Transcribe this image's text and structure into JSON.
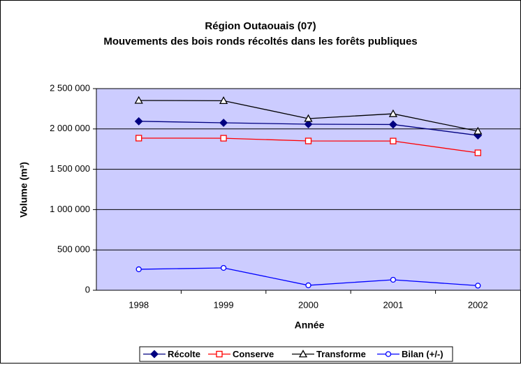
{
  "chart_data": {
    "type": "line",
    "title": "Région Outaouais (07)",
    "subtitle": "Mouvements des bois ronds récoltés dans les forêts publiques",
    "x_label": "Année",
    "y_label": "Volume (m³)",
    "categories": [
      "1998",
      "1999",
      "2000",
      "2001",
      "2002"
    ],
    "series": [
      {
        "name": "Récolte",
        "color": "#000080",
        "marker": "diamond",
        "values": [
          2095000,
          2076000,
          2059000,
          2055000,
          1920000
        ]
      },
      {
        "name": "Conserve",
        "color": "#ff0000",
        "marker": "square",
        "values": [
          1886000,
          1885000,
          1851000,
          1850000,
          1704000
        ]
      },
      {
        "name": "Transforme",
        "color": "#000000",
        "marker": "triangle",
        "values": [
          2353000,
          2350000,
          2128000,
          2188000,
          1972000
        ]
      },
      {
        "name": "Bilan (+/-)",
        "color": "#0000ff",
        "marker": "circle",
        "values": [
          260000,
          277000,
          61000,
          130000,
          57000
        ]
      }
    ],
    "ylim": [
      0,
      2500000
    ],
    "yticks": [
      0,
      {
        "value": 500000,
        "label": "500 000"
      },
      {
        "value": 1000000,
        "label": "1 000 000"
      },
      {
        "value": 1500000,
        "label": "1 500 000"
      },
      {
        "value": 2000000,
        "label": "2 000 000"
      },
      {
        "value": 2500000,
        "label": "2 500 000"
      }
    ],
    "grid": true,
    "legend": "bottom",
    "plot_background": "#ccccff"
  }
}
